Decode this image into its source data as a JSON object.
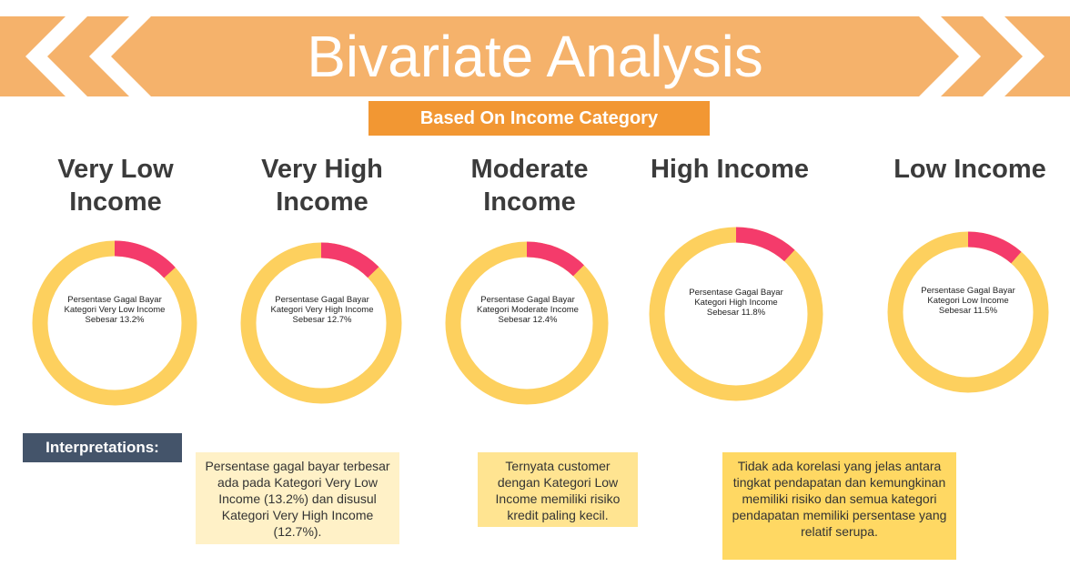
{
  "header": {
    "title": "Bivariate Analysis",
    "subtitle": "Based On Income Category",
    "banner_color": "#f5b26b",
    "chevron_color": "#ffffff"
  },
  "colors": {
    "ring": "#fdd05e",
    "fail": "#f43b6b"
  },
  "chart_data": [
    {
      "type": "pie",
      "title": "Very Low Income",
      "label_lines": [
        "Persentase Gagal Bayar",
        "Kategori Very Low Income",
        "Sebesar 13.2%"
      ],
      "values": [
        13.2,
        86.8
      ]
    },
    {
      "type": "pie",
      "title": "Very High Income",
      "label_lines": [
        "Persentase Gagal Bayar",
        "Kategori Very High Income",
        "Sebesar 12.7%"
      ],
      "values": [
        12.7,
        87.3
      ]
    },
    {
      "type": "pie",
      "title": "Moderate Income",
      "label_lines": [
        "Persentase Gagal Bayar",
        "Kategori Moderate Income",
        "Sebesar 12.4%"
      ],
      "values": [
        12.4,
        87.6
      ]
    },
    {
      "type": "pie",
      "title": "High Income",
      "label_lines": [
        "Persentase Gagal Bayar",
        "Kategori High Income",
        "Sebesar 11.8%"
      ],
      "values": [
        11.8,
        88.2
      ]
    },
    {
      "type": "pie",
      "title": "Low Income",
      "label_lines": [
        "Persentase Gagal Bayar",
        "Kategori Low Income",
        "Sebesar 11.5%"
      ],
      "values": [
        11.5,
        88.5
      ]
    }
  ],
  "interpretations": {
    "label": "Interpretations:",
    "notes": [
      "Persentase gagal bayar terbesar ada pada Kategori Very Low Income (13.2%) dan disusul Kategori Very High Income (12.7%).",
      "Ternyata customer dengan Kategori Low Income memiliki risiko kredit paling kecil.",
      "Tidak ada korelasi yang jelas antara tingkat pendapatan dan kemungkinan memiliki risiko dan semua kategori pendapatan memiliki persentase yang relatif serupa."
    ]
  }
}
